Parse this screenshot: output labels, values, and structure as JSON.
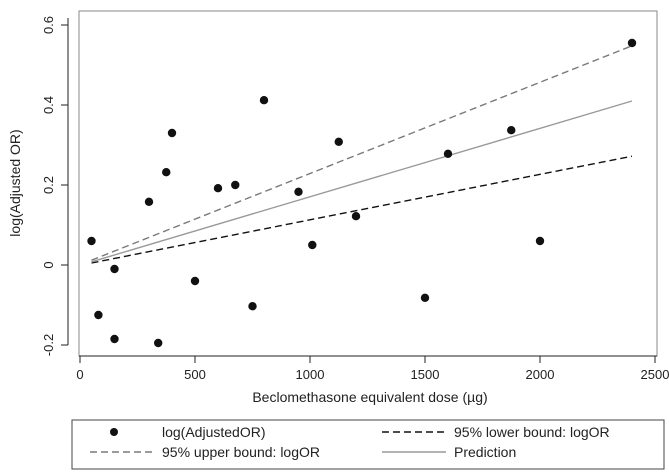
{
  "chart_data": {
    "type": "scatter",
    "title": "",
    "xlabel": "Beclomethasone equivalent dose (µg)",
    "ylabel": "log(Adjusted OR)",
    "xlim": [
      0,
      2500
    ],
    "ylim": [
      -0.2,
      0.6
    ],
    "x_ticks": [
      "0",
      "500",
      "1000",
      "1500",
      "2000",
      "2500"
    ],
    "y_ticks": [
      "-0.2",
      "0",
      "0.2",
      "0.4",
      "0.6"
    ],
    "grid": false,
    "legend_placement": "bottom",
    "series": [
      {
        "name": "log(AdjustedOR)",
        "kind": "points",
        "color": "#111111",
        "points": [
          [
            50,
            0.06
          ],
          [
            80,
            -0.125
          ],
          [
            150,
            -0.01
          ],
          [
            150,
            -0.185
          ],
          [
            300,
            0.158
          ],
          [
            340,
            -0.195
          ],
          [
            375,
            0.232
          ],
          [
            400,
            0.33
          ],
          [
            500,
            -0.04
          ],
          [
            600,
            0.192
          ],
          [
            675,
            0.2
          ],
          [
            750,
            -0.103
          ],
          [
            800,
            0.412
          ],
          [
            950,
            0.183
          ],
          [
            1010,
            0.05
          ],
          [
            1125,
            0.308
          ],
          [
            1200,
            0.122
          ],
          [
            1500,
            -0.082
          ],
          [
            1600,
            0.278
          ],
          [
            1875,
            0.337
          ],
          [
            2000,
            0.06
          ],
          [
            2400,
            0.555
          ]
        ]
      },
      {
        "name": "95% lower bound: logOR",
        "kind": "line",
        "color": "#111111",
        "dash": "7,4",
        "points": [
          [
            50,
            0.005
          ],
          [
            2400,
            0.272
          ]
        ]
      },
      {
        "name": "95% upper bound: logOR",
        "kind": "line",
        "color": "#7a7a7a",
        "dash": "7,4",
        "points": [
          [
            50,
            0.012
          ],
          [
            2400,
            0.548
          ]
        ]
      },
      {
        "name": "Prediction",
        "kind": "line",
        "color": "#9a9a9a",
        "dash": "",
        "points": [
          [
            50,
            0.008
          ],
          [
            2400,
            0.41
          ]
        ]
      }
    ]
  }
}
